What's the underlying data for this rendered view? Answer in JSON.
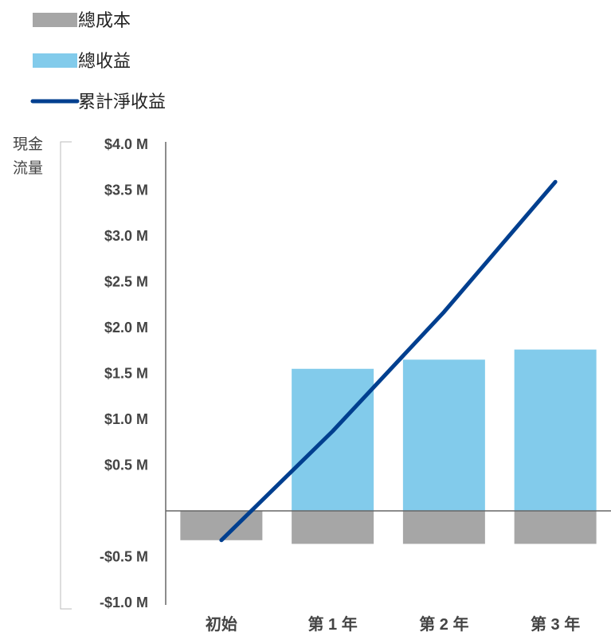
{
  "chart_data": {
    "type": "bar",
    "categories": [
      "初始",
      "第 1 年",
      "第 2 年",
      "第 3 年"
    ],
    "series": [
      {
        "name": "總成本",
        "kind": "bar",
        "color": "#a6a6a6",
        "values": [
          -0.32,
          -0.36,
          -0.36,
          -0.36
        ]
      },
      {
        "name": "總收益",
        "kind": "bar",
        "color": "#82cbeb",
        "values": [
          0,
          1.55,
          1.65,
          1.76
        ]
      },
      {
        "name": "累計淨收益",
        "kind": "line",
        "color": "#003f8f",
        "values": [
          -0.32,
          0.87,
          2.17,
          3.59
        ]
      }
    ],
    "ylabel": "現金流量",
    "ylim": [
      -1.0,
      4.0
    ],
    "yticks": [
      {
        "value": 4.0,
        "label": "$4.0 M"
      },
      {
        "value": 3.5,
        "label": "$3.5 M"
      },
      {
        "value": 3.0,
        "label": "$3.0 M"
      },
      {
        "value": 2.5,
        "label": "$2.5 M"
      },
      {
        "value": 2.0,
        "label": "$2.0 M"
      },
      {
        "value": 1.5,
        "label": "$1.5 M"
      },
      {
        "value": 1.0,
        "label": "$1.0 M"
      },
      {
        "value": 0.5,
        "label": "$0.5 M"
      },
      {
        "value": -0.5,
        "label": "-$0.5 M"
      },
      {
        "value": -1.0,
        "label": "-$1.0 M"
      }
    ],
    "legend": "top-left",
    "grid": false
  }
}
